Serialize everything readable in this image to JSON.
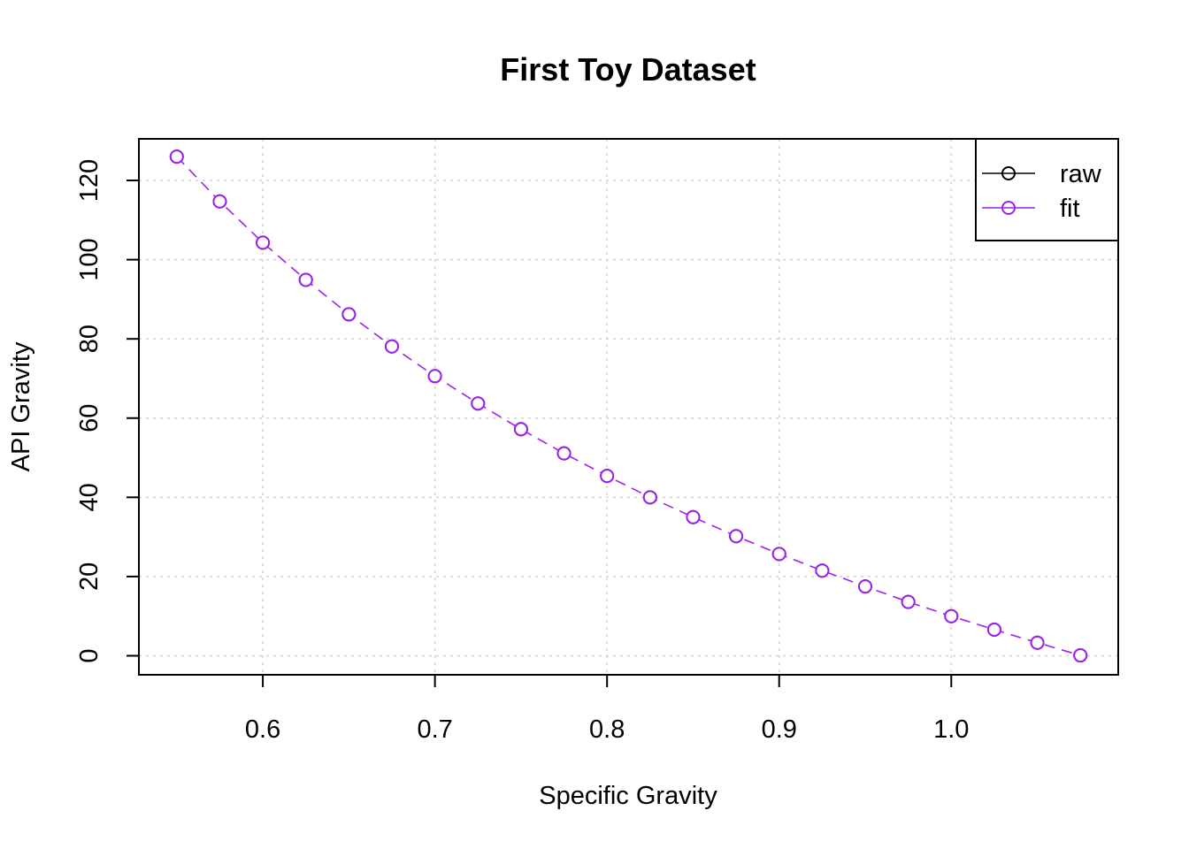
{
  "chart_data": {
    "type": "line",
    "title": "First Toy Dataset",
    "xlabel": "Specific Gravity",
    "ylabel": "API Gravity",
    "xlim": [
      0.528,
      1.097
    ],
    "ylim": [
      -4.8,
      130.5
    ],
    "xticks": [
      0.6,
      0.7,
      0.8,
      0.9,
      1.0
    ],
    "xtick_labels": [
      "0.6",
      "0.7",
      "0.8",
      "0.9",
      "1.0"
    ],
    "yticks": [
      0,
      20,
      40,
      60,
      80,
      100,
      120
    ],
    "ytick_labels": [
      "0",
      "20",
      "40",
      "60",
      "80",
      "100",
      "120"
    ],
    "grid": true,
    "legend_position": "top-right",
    "x": [
      0.55,
      0.575,
      0.6,
      0.625,
      0.65,
      0.675,
      0.7,
      0.725,
      0.75,
      0.775,
      0.8,
      0.825,
      0.85,
      0.875,
      0.9,
      0.925,
      0.95,
      0.975,
      1.0,
      1.025,
      1.05,
      1.075
    ],
    "series": [
      {
        "name": "raw",
        "color": "#000000",
        "style": "points",
        "values": [
          126.0,
          114.7,
          104.3,
          94.9,
          86.2,
          78.1,
          70.6,
          63.7,
          57.2,
          51.1,
          45.4,
          40.0,
          35.0,
          30.2,
          25.7,
          21.5,
          17.5,
          13.6,
          10.0,
          6.6,
          3.3,
          0.1
        ]
      },
      {
        "name": "fit",
        "color": "#a020f0",
        "style": "dashed-line-points",
        "values": [
          126.0,
          114.7,
          104.3,
          94.9,
          86.2,
          78.1,
          70.6,
          63.7,
          57.2,
          51.1,
          45.4,
          40.0,
          35.0,
          30.2,
          25.7,
          21.5,
          17.5,
          13.6,
          10.0,
          6.6,
          3.3,
          0.1
        ]
      }
    ]
  }
}
